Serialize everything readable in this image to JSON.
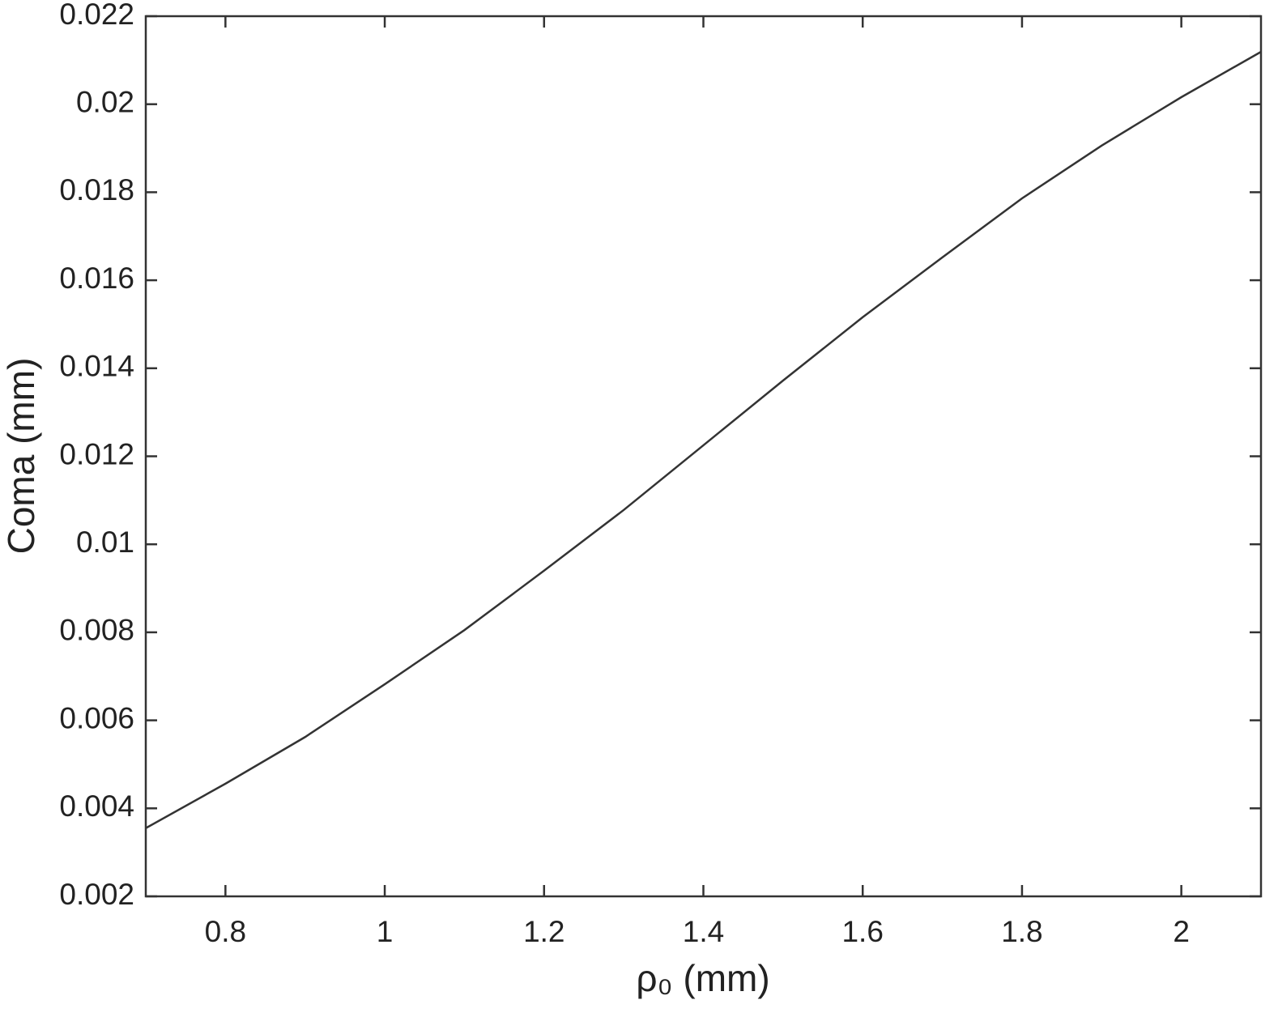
{
  "chart_data": {
    "type": "line",
    "xlabel": "ρ₀ (mm)",
    "ylabel": "Coma (mm)",
    "x": [
      0.7,
      0.8,
      0.9,
      1.0,
      1.1,
      1.2,
      1.3,
      1.4,
      1.5,
      1.6,
      1.7,
      1.8,
      1.9,
      2.0,
      2.1
    ],
    "series": [
      {
        "color": "#333333",
        "values": [
          0.00355,
          0.00456,
          0.00562,
          0.00682,
          0.00805,
          0.0094,
          0.01078,
          0.01225,
          0.01372,
          0.01516,
          0.01652,
          0.01786,
          0.01906,
          0.02016,
          0.02119
        ]
      }
    ],
    "xlim": [
      0.7,
      2.1
    ],
    "xticks": [
      0.8,
      1,
      1.2,
      1.4,
      1.6,
      1.8,
      2
    ],
    "ylim": [
      0.002,
      0.022
    ],
    "yticks": [
      0.002,
      0.004,
      0.006,
      0.008,
      0.01,
      0.012,
      0.014,
      0.016,
      0.018,
      0.02,
      0.022
    ],
    "grid": false
  }
}
